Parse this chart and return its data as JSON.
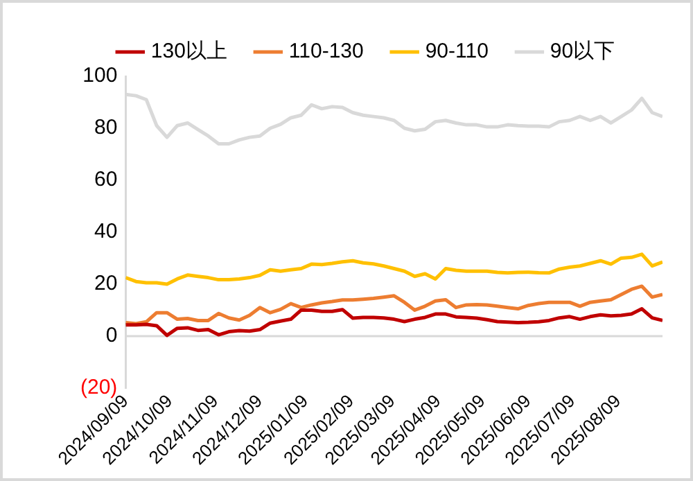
{
  "chart_data": {
    "type": "line",
    "x": [
      "2024-09-09",
      "2024-09-16",
      "2024-09-23",
      "2024-09-30",
      "2024-10-07",
      "2024-10-14",
      "2024-10-21",
      "2024-10-28",
      "2024-11-04",
      "2024-11-11",
      "2024-11-18",
      "2024-11-25",
      "2024-12-02",
      "2024-12-09",
      "2024-12-16",
      "2024-12-23",
      "2024-12-30",
      "2025-01-06",
      "2025-01-13",
      "2025-01-20",
      "2025-01-27",
      "2025-02-03",
      "2025-02-10",
      "2025-02-17",
      "2025-02-24",
      "2025-03-03",
      "2025-03-10",
      "2025-03-17",
      "2025-03-24",
      "2025-03-31",
      "2025-04-07",
      "2025-04-14",
      "2025-04-21",
      "2025-04-28",
      "2025-05-05",
      "2025-05-12",
      "2025-05-19",
      "2025-05-26",
      "2025-06-02",
      "2025-06-09",
      "2025-06-16",
      "2025-06-23",
      "2025-06-30",
      "2025-07-07",
      "2025-07-14",
      "2025-07-21",
      "2025-07-28",
      "2025-08-04",
      "2025-08-11",
      "2025-08-18",
      "2025-08-25",
      "2025-09-01",
      "2025-09-08"
    ],
    "series": [
      {
        "name": "130以上",
        "color": "#c00000",
        "values": [
          4.3,
          4.3,
          4.5,
          4,
          0.3,
          3,
          3.2,
          2.2,
          2.5,
          0.5,
          1.7,
          2.1,
          1.9,
          2.5,
          5,
          5.8,
          6.5,
          10,
          10,
          9.5,
          9.5,
          10.2,
          6.9,
          7.2,
          7.2,
          7,
          6.5,
          5.6,
          6.5,
          7.2,
          8.5,
          8.5,
          7.4,
          7.2,
          6.9,
          6.3,
          5.6,
          5.4,
          5.2,
          5.3,
          5.5,
          6,
          7,
          7.5,
          6.5,
          7.5,
          8.2,
          7.8,
          8,
          8.5,
          10.5,
          7,
          6
        ]
      },
      {
        "name": "110-130",
        "color": "#ed7d31",
        "values": [
          5.2,
          4.8,
          5.5,
          9,
          9,
          6.5,
          6.8,
          6,
          6,
          8.7,
          7,
          6.2,
          8,
          11,
          9,
          10.3,
          12.5,
          11,
          12,
          12.8,
          13.3,
          13.9,
          13.9,
          14.2,
          14.5,
          15,
          15.5,
          13,
          10,
          11.5,
          13.5,
          14,
          11,
          12,
          12.1,
          12,
          11.5,
          11,
          10.5,
          11.8,
          12.5,
          13,
          13,
          13,
          11.5,
          13,
          13.5,
          14,
          16,
          18,
          19.2,
          15,
          16
        ]
      },
      {
        "name": "90-110",
        "color": "#ffc000",
        "values": [
          22.5,
          21,
          20.5,
          20.5,
          20,
          22,
          23.5,
          23,
          22.5,
          21.7,
          21.7,
          22,
          22.5,
          23.4,
          25.5,
          25,
          25.5,
          26,
          27.7,
          27.5,
          28,
          28.6,
          29,
          28.2,
          27.8,
          27,
          26,
          25,
          23,
          24,
          22,
          26,
          25.3,
          25,
          25,
          25,
          24.5,
          24.3,
          24.5,
          24.6,
          24.4,
          24.3,
          25.8,
          26.5,
          27,
          28,
          29,
          27.7,
          30,
          30.3,
          31.5,
          27,
          28.5
        ]
      },
      {
        "name": "90以下",
        "color": "#d9d9d9",
        "values": [
          93,
          92.5,
          91,
          81,
          76.5,
          81,
          82,
          79.5,
          77,
          74,
          74,
          75.5,
          76.5,
          77,
          80,
          81.5,
          84,
          85,
          89,
          87.5,
          88.3,
          88,
          86,
          85,
          84.5,
          84,
          83,
          80,
          79,
          79.6,
          82.5,
          83,
          82,
          81.3,
          81.3,
          80.5,
          80.5,
          81.3,
          81,
          80.8,
          80.8,
          80.5,
          82.5,
          83,
          84.5,
          83,
          84.5,
          82,
          84.5,
          87,
          91.5,
          86,
          84.5
        ]
      }
    ],
    "xlim": [
      "2024-09-09",
      "2025-09-08"
    ],
    "xticks": [
      {
        "value": "2024-09-09",
        "label": "2024/09/09"
      },
      {
        "value": "2024-10-09",
        "label": "2024/10/09"
      },
      {
        "value": "2024-11-09",
        "label": "2024/11/09"
      },
      {
        "value": "2024-12-09",
        "label": "2024/12/09"
      },
      {
        "value": "2025-01-09",
        "label": "2025/01/09"
      },
      {
        "value": "2025-02-09",
        "label": "2025/02/09"
      },
      {
        "value": "2025-03-09",
        "label": "2025/03/09"
      },
      {
        "value": "2025-04-09",
        "label": "2025/04/09"
      },
      {
        "value": "2025-05-09",
        "label": "2025/05/09"
      },
      {
        "value": "2025-06-09",
        "label": "2025/06/09"
      },
      {
        "value": "2025-07-09",
        "label": "2025/07/09"
      },
      {
        "value": "2025-08-09",
        "label": "2025/08/09"
      }
    ],
    "ylim": [
      -20,
      100
    ],
    "yticks": [
      {
        "value": -20,
        "label": "(20)"
      },
      0,
      20,
      40,
      60,
      80,
      100
    ],
    "ref_lines": [
      {
        "axis": "y",
        "value": 0,
        "color": "#d9d9d9"
      }
    ],
    "legend": "top",
    "grid": false,
    "marker": "none"
  }
}
